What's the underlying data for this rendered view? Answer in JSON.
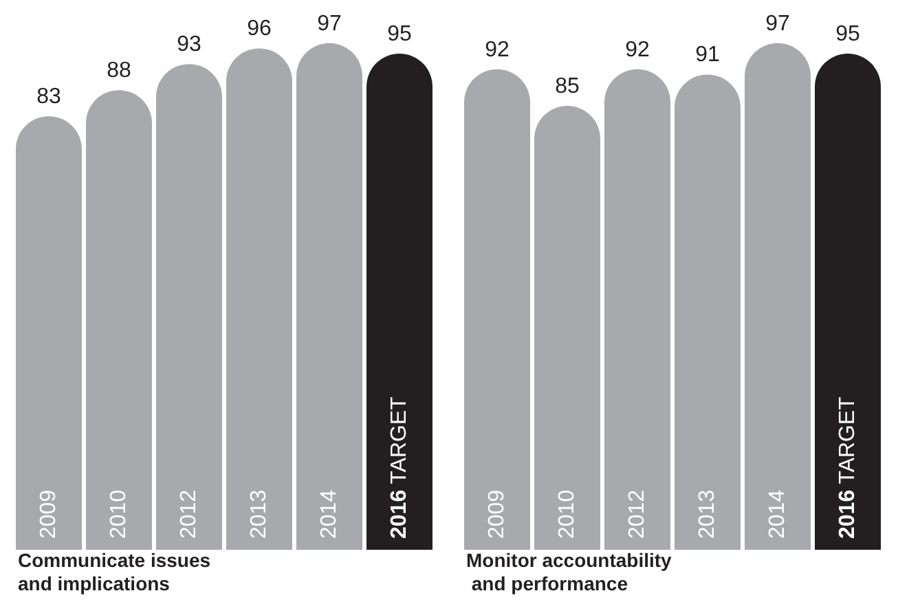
{
  "chart_data": [
    {
      "type": "bar",
      "xlabel": "Communicate issues and implications",
      "categories": [
        "2009",
        "2010",
        "2012",
        "2013",
        "2014",
        "2016 TARGET"
      ],
      "values": [
        83,
        88,
        93,
        96,
        97,
        95
      ],
      "colors": [
        "#a7a9ac",
        "#a7a9ac",
        "#a7a9ac",
        "#a7a9ac",
        "#a7a9ac",
        "#231f20"
      ],
      "data_labels": true
    },
    {
      "type": "bar",
      "xlabel": "Monitor accountability and performance",
      "categories": [
        "2009",
        "2010",
        "2012",
        "2013",
        "2014",
        "2016 TARGET"
      ],
      "values": [
        92,
        85,
        92,
        91,
        97,
        95
      ],
      "colors": [
        "#a7a9ac",
        "#a7a9ac",
        "#a7a9ac",
        "#a7a9ac",
        "#a7a9ac",
        "#231f20"
      ],
      "data_labels": true
    }
  ]
}
